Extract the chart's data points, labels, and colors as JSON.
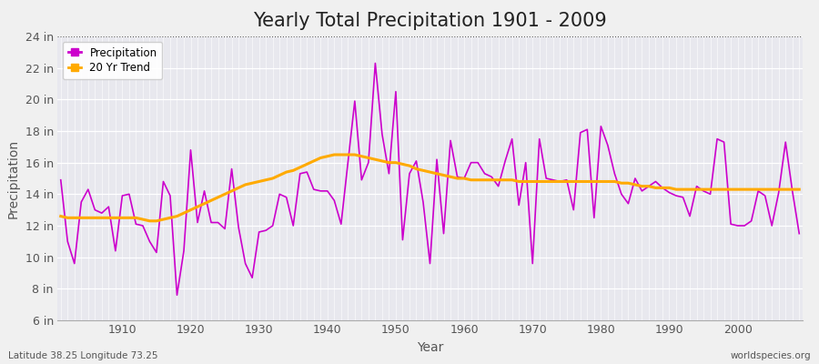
{
  "title": "Yearly Total Precipitation 1901 - 2009",
  "xlabel": "Year",
  "ylabel": "Precipitation",
  "start_year": 1901,
  "end_year": 2009,
  "ylim": [
    6,
    24
  ],
  "yticks": [
    6,
    8,
    10,
    12,
    14,
    16,
    18,
    20,
    22,
    24
  ],
  "ytick_labels": [
    "6 in",
    "8 in",
    "10 in",
    "12 in",
    "14 in",
    "16 in",
    "18 in",
    "20 in",
    "22 in",
    "24 in"
  ],
  "precip_color": "#cc00cc",
  "trend_color": "#ffaa00",
  "background_color": "#f0f0f0",
  "plot_bg_color": "#e8e8ee",
  "grid_color": "#ffffff",
  "title_fontsize": 15,
  "axis_fontsize": 10,
  "tick_fontsize": 9,
  "precipitation": [
    14.9,
    11.0,
    9.6,
    13.5,
    14.3,
    13.0,
    12.8,
    13.2,
    10.4,
    13.9,
    14.0,
    12.1,
    12.0,
    11.0,
    10.3,
    14.8,
    13.9,
    7.6,
    10.4,
    16.8,
    12.2,
    14.2,
    12.2,
    12.2,
    11.8,
    15.6,
    11.9,
    9.6,
    8.7,
    11.6,
    11.7,
    12.0,
    14.0,
    13.8,
    12.0,
    15.3,
    15.4,
    14.3,
    14.2,
    14.2,
    13.6,
    12.1,
    16.0,
    19.9,
    14.9,
    16.0,
    22.3,
    17.8,
    15.3,
    20.5,
    11.1,
    15.3,
    16.1,
    13.5,
    9.6,
    16.2,
    11.5,
    17.4,
    15.1,
    15.0,
    16.0,
    16.0,
    15.3,
    15.1,
    14.5,
    16.1,
    17.5,
    13.3,
    16.0,
    9.6,
    17.5,
    15.0,
    14.9,
    14.8,
    14.9,
    13.0,
    17.9,
    18.1,
    12.5,
    18.3,
    17.1,
    15.3,
    14.0,
    13.4,
    15.0,
    14.2,
    14.5,
    14.8,
    14.4,
    14.1,
    13.9,
    13.8,
    12.6,
    14.5,
    14.2,
    14.0,
    17.5,
    17.3,
    12.1,
    12.0,
    12.0,
    12.3,
    14.2,
    13.9,
    12.0,
    14.1,
    17.3,
    14.2,
    11.5
  ],
  "trend": [
    12.6,
    12.5,
    12.5,
    12.5,
    12.5,
    12.5,
    12.5,
    12.5,
    12.5,
    12.5,
    12.5,
    12.5,
    12.4,
    12.3,
    12.3,
    12.4,
    12.5,
    12.6,
    12.8,
    13.0,
    13.2,
    13.4,
    13.6,
    13.8,
    14.0,
    14.2,
    14.4,
    14.6,
    14.7,
    14.8,
    14.9,
    15.0,
    15.2,
    15.4,
    15.5,
    15.7,
    15.9,
    16.1,
    16.3,
    16.4,
    16.5,
    16.5,
    16.5,
    16.5,
    16.4,
    16.3,
    16.2,
    16.1,
    16.0,
    16.0,
    15.9,
    15.8,
    15.6,
    15.5,
    15.4,
    15.3,
    15.2,
    15.1,
    15.0,
    15.0,
    14.9,
    14.9,
    14.9,
    14.9,
    14.9,
    14.9,
    14.9,
    14.8,
    14.8,
    14.8,
    14.8,
    14.8,
    14.8,
    14.8,
    14.8,
    14.8,
    14.8,
    14.8,
    14.8,
    14.8,
    14.8,
    14.8,
    14.7,
    14.7,
    14.6,
    14.5,
    14.5,
    14.4,
    14.4,
    14.4,
    14.3,
    14.3,
    14.3,
    14.3,
    14.3,
    14.3,
    14.3,
    14.3,
    14.3,
    14.3,
    14.3,
    14.3,
    14.3,
    14.3,
    14.3,
    14.3,
    14.3,
    14.3,
    14.3
  ],
  "legend_entries": [
    "Precipitation",
    "20 Yr Trend"
  ],
  "legend_colors": [
    "#cc00cc",
    "#ffaa00"
  ],
  "footnote_left": "Latitude 38.25 Longitude 73.25",
  "footnote_right": "worldspecies.org"
}
